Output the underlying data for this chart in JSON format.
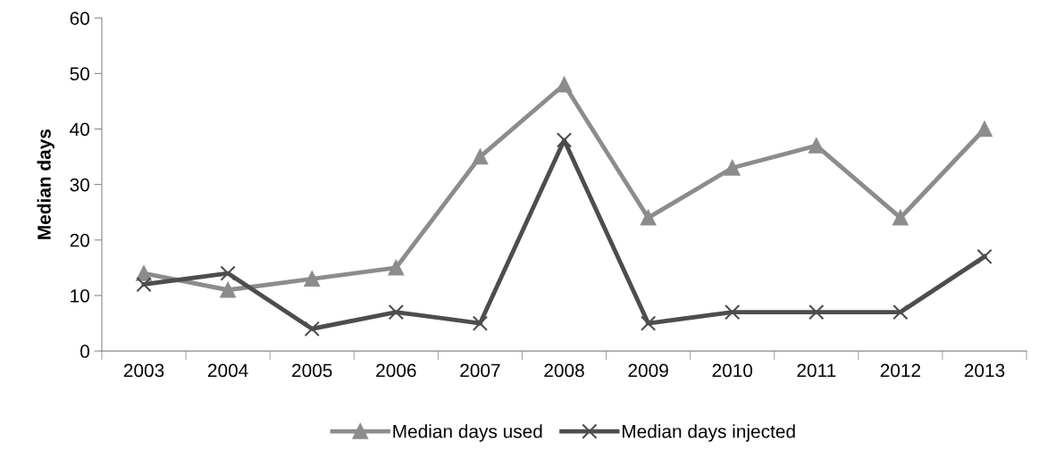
{
  "chart_data": {
    "type": "line",
    "ylabel": "Median days",
    "categories": [
      "2003",
      "2004",
      "2005",
      "2006",
      "2007",
      "2008",
      "2009",
      "2010",
      "2011",
      "2012",
      "2013"
    ],
    "series": [
      {
        "name": "Median days used",
        "color": "#8c8c8c",
        "marker": "triangle",
        "values": [
          14,
          11,
          13,
          15,
          35,
          48,
          24,
          33,
          37,
          24,
          40
        ]
      },
      {
        "name": "Median days injected",
        "color": "#4d4d4d",
        "marker": "cross",
        "values": [
          12,
          14,
          4,
          7,
          5,
          38,
          5,
          7,
          7,
          7,
          17
        ]
      }
    ],
    "ylim": [
      0,
      60
    ],
    "yticks": [
      0,
      10,
      20,
      30,
      40,
      50,
      60
    ],
    "grid": false,
    "legend": "bottom",
    "line_style": "solid"
  }
}
